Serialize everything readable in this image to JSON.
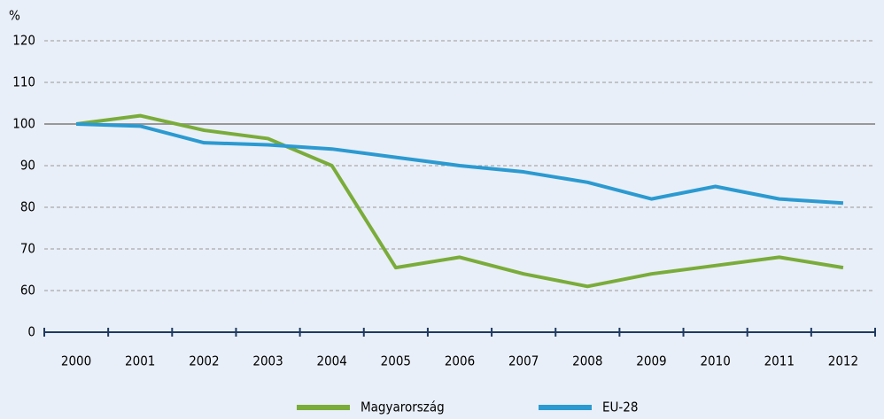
{
  "chart_data": {
    "type": "line",
    "y_label": "%",
    "categories": [
      "2000",
      "2001",
      "2002",
      "2003",
      "2004",
      "2005",
      "2006",
      "2007",
      "2008",
      "2009",
      "2010",
      "2011",
      "2012"
    ],
    "series": [
      {
        "name": "Magyarország",
        "color": "#7aac3a",
        "values": [
          100,
          102,
          98.5,
          96.5,
          90,
          65.5,
          68,
          64,
          61,
          64,
          66,
          68,
          65.5
        ]
      },
      {
        "name": "EU-28",
        "color": "#2b9ad1",
        "values": [
          100,
          99.5,
          95.5,
          95,
          94,
          92,
          90,
          88.5,
          86,
          82,
          85,
          82,
          81
        ]
      }
    ],
    "ylim": [
      0,
      120
    ],
    "ybreak": [
      0,
      50
    ],
    "yticks": [
      0,
      60,
      70,
      80,
      90,
      100,
      110,
      120
    ],
    "reference_line": 100,
    "grid": true,
    "legend": "bottom"
  }
}
